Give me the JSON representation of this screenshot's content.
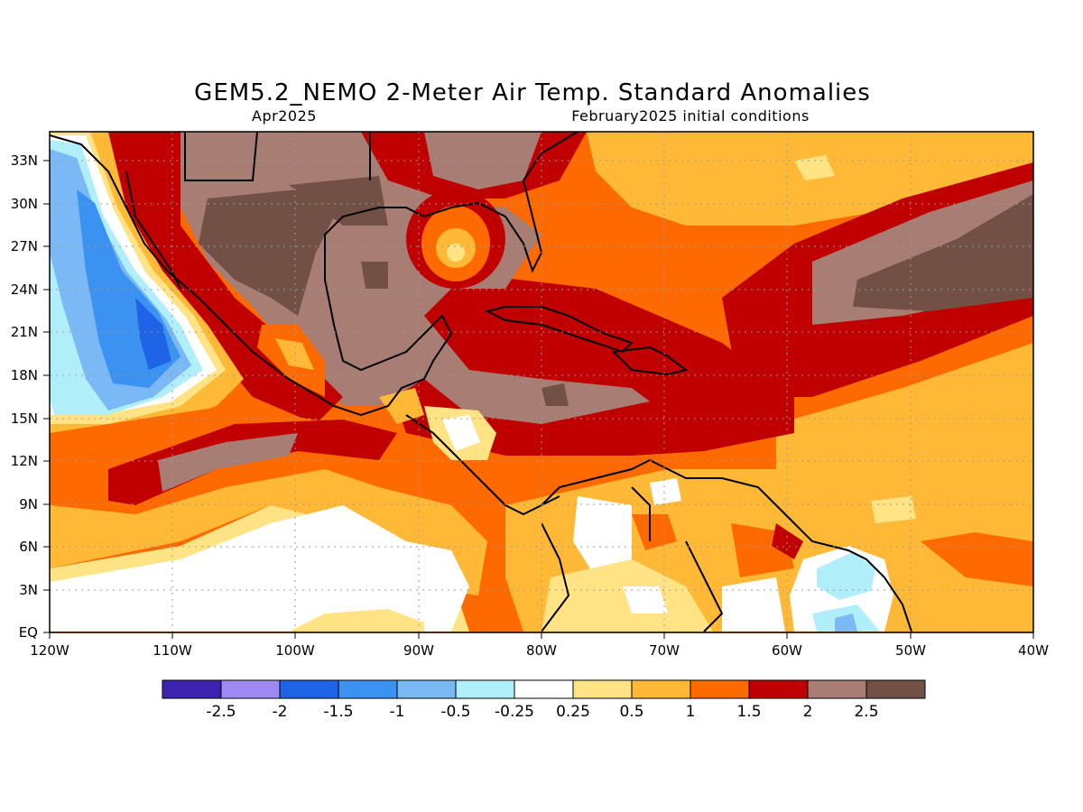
{
  "title": "GEM5.2_NEMO 2-Meter Air Temp. Standard Anomalies",
  "valid_month": "Apr2025",
  "initial_conditions": "February2025 initial conditions",
  "map": {
    "lon_ticks": [
      "120W",
      "110W",
      "100W",
      "90W",
      "80W",
      "70W",
      "60W",
      "50W",
      "40W"
    ],
    "lat_ticks": [
      "EQ",
      "3N",
      "6N",
      "9N",
      "12N",
      "15N",
      "18N",
      "21N",
      "24N",
      "27N",
      "30N",
      "33N"
    ],
    "lon_range": [
      -120,
      -40
    ],
    "lat_range": [
      0,
      35
    ],
    "grid": true,
    "regions": {
      "baja_pacific_cold": "-1.5 to -2",
      "eastern_pacific_near_equator": "-0.25 to 0.25",
      "gulf_of_mexico": "2 to 2.5",
      "mexico_interior": "2.5+",
      "atlantic_central_band": "2.5+",
      "caribbean": "1.5 to 2",
      "guianas_cool_patch": "-0.25 to -1"
    }
  },
  "colorbar": {
    "labels": [
      "-2.5",
      "-2",
      "-1.5",
      "-1",
      "-0.5",
      "-0.25",
      "0.25",
      "0.5",
      "1",
      "1.5",
      "2",
      "2.5"
    ],
    "colors": [
      "#3d22b0",
      "#a088f5",
      "#1f64e6",
      "#3b92f0",
      "#7ab9f5",
      "#b0eefa",
      "#ffffff",
      "#ffe384",
      "#ffb936",
      "#ff6a00",
      "#c00000",
      "#a87d74",
      "#735045"
    ]
  }
}
